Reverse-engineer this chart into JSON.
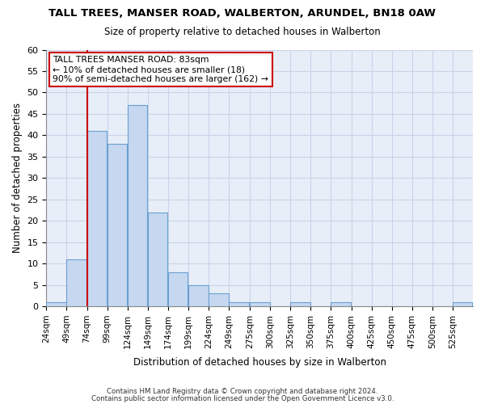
{
  "title": "TALL TREES, MANSER ROAD, WALBERTON, ARUNDEL, BN18 0AW",
  "subtitle": "Size of property relative to detached houses in Walberton",
  "xlabel": "Distribution of detached houses by size in Walberton",
  "ylabel": "Number of detached properties",
  "bin_labels": [
    "24sqm",
    "49sqm",
    "74sqm",
    "99sqm",
    "124sqm",
    "149sqm",
    "174sqm",
    "199sqm",
    "224sqm",
    "249sqm",
    "275sqm",
    "300sqm",
    "325sqm",
    "350sqm",
    "375sqm",
    "400sqm",
    "425sqm",
    "450sqm",
    "475sqm",
    "500sqm",
    "525sqm"
  ],
  "bin_starts": [
    24,
    49,
    74,
    99,
    124,
    149,
    174,
    199,
    224,
    249,
    275,
    300,
    325,
    350,
    375,
    400,
    425,
    450,
    475,
    500,
    525
  ],
  "bin_width": 25,
  "counts": [
    1,
    11,
    41,
    38,
    47,
    22,
    8,
    5,
    3,
    1,
    1,
    0,
    1,
    0,
    1,
    0,
    0,
    0,
    0,
    0,
    1
  ],
  "bar_color": "#c5d8f0",
  "bar_edge_color": "#6a9fd0",
  "red_line_x": 74,
  "annotation_title": "TALL TREES MANSER ROAD: 83sqm",
  "annotation_line1": "← 10% of detached houses are smaller (18)",
  "annotation_line2": "90% of semi-detached houses are larger (162) →",
  "annotation_box_color": "#ffffff",
  "annotation_box_edge_color": "#cc0000",
  "red_line_color": "#cc0000",
  "ylim": [
    0,
    60
  ],
  "yticks": [
    0,
    5,
    10,
    15,
    20,
    25,
    30,
    35,
    40,
    45,
    50,
    55,
    60
  ],
  "grid_color": "#c8d4e8",
  "background_color": "#ffffff",
  "plot_bg_color": "#e8eef8",
  "footer1": "Contains HM Land Registry data © Crown copyright and database right 2024.",
  "footer2": "Contains public sector information licensed under the Open Government Licence v3.0."
}
